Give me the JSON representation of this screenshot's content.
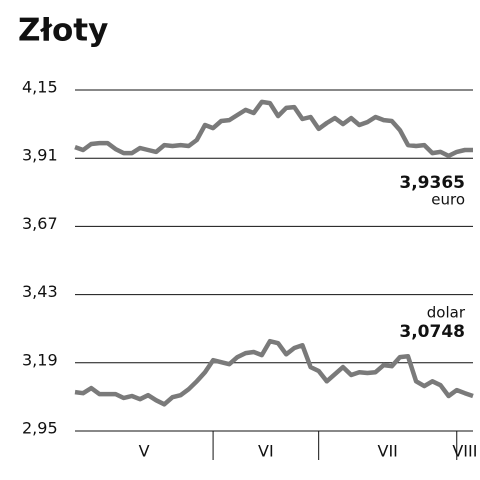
{
  "chart_data": {
    "type": "line",
    "title": "Złoty",
    "categories": [
      "V",
      null,
      null,
      null,
      null,
      null,
      null,
      null,
      null,
      null,
      null,
      null,
      null,
      null,
      null,
      null,
      null,
      "VI",
      null,
      null,
      null,
      null,
      null,
      null,
      null,
      null,
      null,
      null,
      null,
      null,
      "VII",
      null,
      null,
      null,
      null,
      null,
      null,
      null,
      null,
      null,
      null,
      null,
      null,
      null,
      null,
      null,
      null,
      "VIII",
      null,
      null
    ],
    "series": [
      {
        "name": "euro",
        "annotation": "3,9365",
        "color": "#7a7a7a",
        "values": [
          3.949,
          3.939,
          3.96,
          3.963,
          3.963,
          3.942,
          3.928,
          3.928,
          3.946,
          3.939,
          3.932,
          3.956,
          3.953,
          3.956,
          3.953,
          3.974,
          4.027,
          4.016,
          4.041,
          4.044,
          4.062,
          4.08,
          4.069,
          4.108,
          4.104,
          4.058,
          4.087,
          4.09,
          4.048,
          4.055,
          4.013,
          4.034,
          4.051,
          4.03,
          4.051,
          4.027,
          4.037,
          4.055,
          4.044,
          4.041,
          4.009,
          3.956,
          3.953,
          3.956,
          3.928,
          3.932,
          3.918,
          3.932,
          3.939,
          3.939
        ]
      },
      {
        "name": "dolar",
        "annotation": "3,0748",
        "color": "#7a7a7a",
        "values": [
          3.087,
          3.083,
          3.101,
          3.08,
          3.08,
          3.08,
          3.066,
          3.073,
          3.062,
          3.076,
          3.058,
          3.044,
          3.069,
          3.076,
          3.097,
          3.125,
          3.157,
          3.199,
          3.192,
          3.185,
          3.21,
          3.224,
          3.228,
          3.217,
          3.266,
          3.259,
          3.22,
          3.242,
          3.252,
          3.175,
          3.161,
          3.125,
          3.15,
          3.175,
          3.147,
          3.157,
          3.154,
          3.157,
          3.182,
          3.178,
          3.21,
          3.213,
          3.125,
          3.108,
          3.125,
          3.111,
          3.073,
          3.094,
          3.083,
          3.073
        ]
      }
    ],
    "ylim": [
      2.95,
      4.15
    ],
    "yticks": [
      {
        "value": 2.95,
        "label": "2,95"
      },
      {
        "value": 3.19,
        "label": "3,19"
      },
      {
        "value": 3.43,
        "label": "3,43"
      },
      {
        "value": 3.67,
        "label": "3,67"
      },
      {
        "value": 3.91,
        "label": "3,91"
      },
      {
        "value": 4.15,
        "label": "4,15"
      }
    ],
    "grid": true
  }
}
